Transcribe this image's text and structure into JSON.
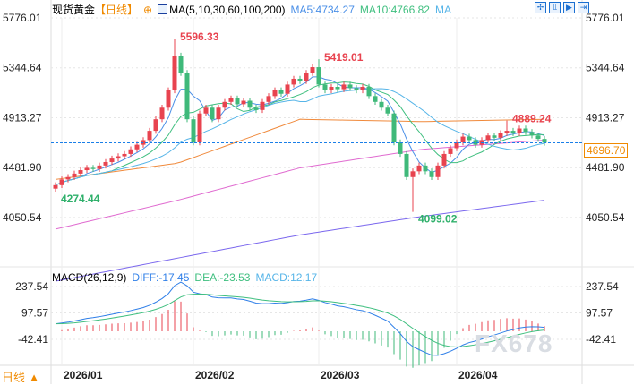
{
  "header": {
    "title": "现货黄金",
    "period": "【日线】",
    "indicator": "MA(5,10,30,60,100,200)",
    "ma5": "MA5:4734.27",
    "ma10": "MA10:4766.82",
    "ma_more": "MA"
  },
  "toolbar": [
    "✢",
    "⫫",
    "▶",
    "⇥"
  ],
  "price_axis": {
    "labels": [
      "5776.01",
      "5344.64",
      "4913.27",
      "4481.90",
      "4050.54"
    ],
    "values": [
      5776.01,
      5344.64,
      4913.27,
      4481.9,
      4050.54
    ],
    "last_price": "4696.70"
  },
  "annotations": [
    {
      "text": "5596.33",
      "index": 19,
      "value": 5596.33,
      "color": "#e8434f"
    },
    {
      "text": "5419.01",
      "index": 42,
      "value": 5419.01,
      "color": "#e8434f"
    },
    {
      "text": "4889.24",
      "index": 72,
      "value": 4889.24,
      "color": "#e8434f"
    },
    {
      "text": "4274.44",
      "index": 0,
      "value": 4274.44,
      "color": "#2fb06b"
    },
    {
      "text": "4099.02",
      "index": 57,
      "value": 4099.02,
      "color": "#2fb06b"
    }
  ],
  "chart_data": {
    "type": "candlestick",
    "closes": [
      4330,
      4380,
      4400,
      4430,
      4460,
      4480,
      4470,
      4500,
      4530,
      4560,
      4580,
      4600,
      4640,
      4680,
      4720,
      4800,
      4900,
      5000,
      5150,
      5450,
      5300,
      4900,
      4700,
      4950,
      5000,
      4900,
      5000,
      5050,
      5080,
      5030,
      5060,
      5000,
      4980,
      5050,
      5100,
      5150,
      5120,
      5200,
      5250,
      5230,
      5300,
      5350,
      5200,
      5150,
      5180,
      5160,
      5200,
      5170,
      5150,
      5180,
      5100,
      5050,
      5000,
      4950,
      4700,
      4600,
      4400,
      4450,
      4500,
      4450,
      4400,
      4500,
      4600,
      4650,
      4700,
      4750,
      4720,
      4680,
      4720,
      4760,
      4740,
      4780,
      4800,
      4780,
      4820,
      4790,
      4760,
      4730,
      4697
    ],
    "long_ma": [
      {
        "name": "MA30",
        "color": "#f08a3c",
        "samples": [
          4380,
          4520,
          4900,
          4880,
          4900
        ]
      },
      {
        "name": "MA60",
        "color": "#e06bd0",
        "samples": [
          3950,
          4200,
          4480,
          4640,
          4720
        ]
      },
      {
        "name": "MA100",
        "color": "#7b68ee",
        "samples": [
          3500,
          3700,
          3900,
          4060,
          4200
        ]
      }
    ],
    "x_labels": [
      "2026/01",
      "2026/02",
      "2026/03",
      "2026/04"
    ],
    "x_label_index": [
      1,
      22,
      42,
      64
    ]
  },
  "macd": {
    "label": "MACD(26,12,9)",
    "diff": "DIFF:-17.45",
    "dea": "DEA:-23.53",
    "macd": "MACD:12.17",
    "axis": [
      "237.54",
      "97.57",
      "-42.41"
    ],
    "axis_values": [
      237.54,
      97.57,
      -42.41
    ]
  },
  "footer": {
    "timeframe": "日线 ▲",
    "watermark": "FX678"
  },
  "colors": {
    "up": "#e8434f",
    "down": "#3fb97a",
    "diff": "#2f7fe8",
    "dea": "#3fbf7f"
  }
}
